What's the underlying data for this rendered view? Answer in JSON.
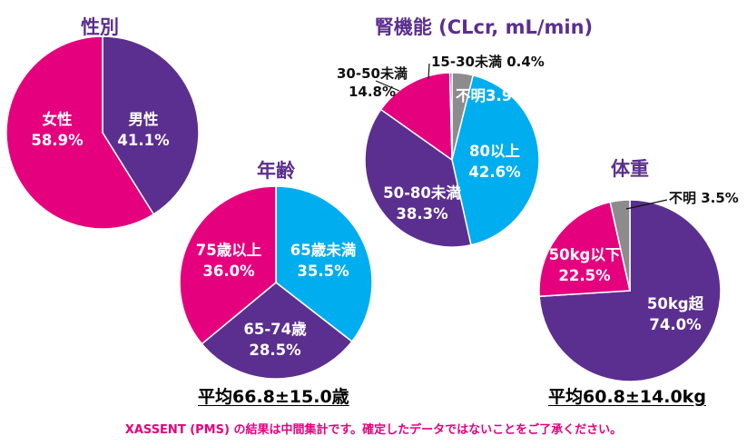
{
  "colors": {
    "magenta": "#e5007e",
    "purple": "#5b2f8f",
    "cyan": "#00aeef",
    "gray": "#8c8c8c",
    "title": "#5b2f8f"
  },
  "chart_data": [
    {
      "id": "sex",
      "type": "pie",
      "title": "性別",
      "slices": [
        {
          "label": "男性",
          "value": 41.1,
          "display": "41.1%",
          "color": "purple"
        },
        {
          "label": "女性",
          "value": 58.9,
          "display": "58.9%",
          "color": "magenta"
        }
      ]
    },
    {
      "id": "renal",
      "type": "pie",
      "title": "腎機能 (CLcr, mL/min)",
      "slices": [
        {
          "label": "不明",
          "value": 3.9,
          "display": "3.9%",
          "color": "gray"
        },
        {
          "label": "80以上",
          "value": 42.6,
          "display": "42.6%",
          "color": "cyan"
        },
        {
          "label": "50-80未満",
          "value": 38.3,
          "display": "38.3%",
          "color": "purple"
        },
        {
          "label": "30-50未満",
          "value": 14.8,
          "display": "14.8%",
          "color": "magenta"
        },
        {
          "label": "15-30未満",
          "value": 0.4,
          "display": "0.4%",
          "color": "purple"
        }
      ]
    },
    {
      "id": "age",
      "type": "pie",
      "title": "年齢",
      "slices": [
        {
          "label": "65歳未満",
          "value": 35.5,
          "display": "35.5%",
          "color": "cyan"
        },
        {
          "label": "65-74歳",
          "value": 28.5,
          "display": "28.5%",
          "color": "purple"
        },
        {
          "label": "75歳以上",
          "value": 36.0,
          "display": "36.0%",
          "color": "magenta"
        }
      ]
    },
    {
      "id": "weight",
      "type": "pie",
      "title": "体重",
      "slices": [
        {
          "label": "50kg超",
          "value": 74.0,
          "display": "74.0%",
          "color": "purple"
        },
        {
          "label": "50kg以下",
          "value": 22.5,
          "display": "22.5%",
          "color": "magenta"
        },
        {
          "label": "不明",
          "value": 3.5,
          "display": "3.5%",
          "color": "gray"
        }
      ]
    }
  ],
  "notes": {
    "age_mean": "平均66.8±15.0歳",
    "weight_mean": "平均60.8±14.0kg",
    "footnote": "XASSENT (PMS) の結果は中間集計です。確定したデータではないことをご了承ください。"
  }
}
